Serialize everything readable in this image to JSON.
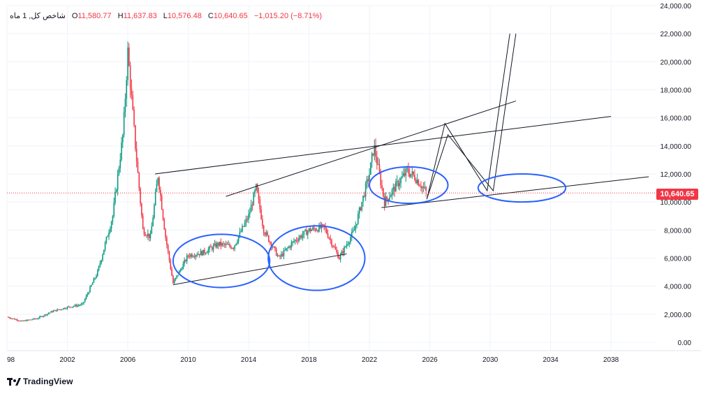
{
  "header": {
    "symbol": "شاخص کل, 1 ماه",
    "open_label": "O",
    "open": "11,580.77",
    "high_label": "H",
    "high": "11,637.83",
    "low_label": "L",
    "low": "10,576.48",
    "close_label": "C",
    "close": "10,640.65",
    "change": "−1,015.20 (−8.71%)"
  },
  "brand": {
    "name": "TradingView"
  },
  "price_tag": "10,640.65",
  "colors": {
    "up": "#089981",
    "down": "#f23645",
    "drawing": "#131722",
    "annotation": "#2962ff",
    "grid": "#e0e3eb"
  },
  "chart_data": {
    "type": "candlestick",
    "x_ticks": [
      "98",
      "2002",
      "2006",
      "2010",
      "2014",
      "2018",
      "2022",
      "2026",
      "2030",
      "2034",
      "2038"
    ],
    "y_ticks": [
      "0.00",
      "2,000.00",
      "4,000.00",
      "6,000.00",
      "8,000.00",
      "10,000.00",
      "12,000.00",
      "14,000.00",
      "16,000.00",
      "18,000.00",
      "20,000.00",
      "22,000.00",
      "24,000.00"
    ],
    "xlim": [
      1998,
      2041
    ],
    "ylim": [
      -600,
      24000
    ],
    "last_price": 10640.65,
    "close_series": [
      [
        1998,
        1800
      ],
      [
        1999,
        1500
      ],
      [
        2000,
        1700
      ],
      [
        2001,
        2200
      ],
      [
        2002,
        2500
      ],
      [
        2003,
        2700
      ],
      [
        2004,
        5000
      ],
      [
        2005,
        9000
      ],
      [
        2005.7,
        15000
      ],
      [
        2006,
        20700
      ],
      [
        2006.5,
        14000
      ],
      [
        2007,
        8000
      ],
      [
        2007.5,
        7500
      ],
      [
        2008,
        11900
      ],
      [
        2008.5,
        7500
      ],
      [
        2009,
        4200
      ],
      [
        2010,
        6200
      ],
      [
        2011,
        6400
      ],
      [
        2012,
        7000
      ],
      [
        2013,
        6800
      ],
      [
        2014,
        9000
      ],
      [
        2014.5,
        11000
      ],
      [
        2015,
        8000
      ],
      [
        2016,
        6000
      ],
      [
        2017,
        7200
      ],
      [
        2018,
        8000
      ],
      [
        2019,
        8200
      ],
      [
        2020,
        6000
      ],
      [
        2021,
        8000
      ],
      [
        2022,
        12000
      ],
      [
        2022.3,
        14000
      ],
      [
        2023,
        10000
      ],
      [
        2024,
        11500
      ],
      [
        2024.5,
        12200
      ],
      [
        2025,
        11800
      ],
      [
        2025.8,
        10640
      ]
    ],
    "trendlines": [
      {
        "x": [
          2007.8,
          2038
        ],
        "y": [
          12000,
          16100
        ]
      },
      {
        "x": [
          2012.5,
          2031.7
        ],
        "y": [
          10400,
          17200
        ]
      },
      {
        "x": [
          2009,
          2020.5
        ],
        "y": [
          4100,
          6300
        ]
      },
      {
        "x": [
          2022.8,
          2040.5
        ],
        "y": [
          9600,
          11800
        ]
      },
      {
        "x": [
          2025.8,
          2027,
          2029.8,
          2031.3
        ],
        "y": [
          10200,
          15600,
          10800,
          22000
        ]
      },
      {
        "x": [
          2025.8,
          2027.2,
          2030.2,
          2031.7
        ],
        "y": [
          10200,
          14800,
          10800,
          22000
        ]
      }
    ],
    "annotations": [
      {
        "cx": 2012.2,
        "cy": 5800,
        "rx": 3.2,
        "ry": 1900
      },
      {
        "cx": 2018.5,
        "cy": 6000,
        "rx": 3.2,
        "ry": 2300
      },
      {
        "cx": 2024.6,
        "cy": 11200,
        "rx": 2.6,
        "ry": 1300
      },
      {
        "cx": 2032.1,
        "cy": 11000,
        "rx": 2.9,
        "ry": 1000
      }
    ]
  }
}
